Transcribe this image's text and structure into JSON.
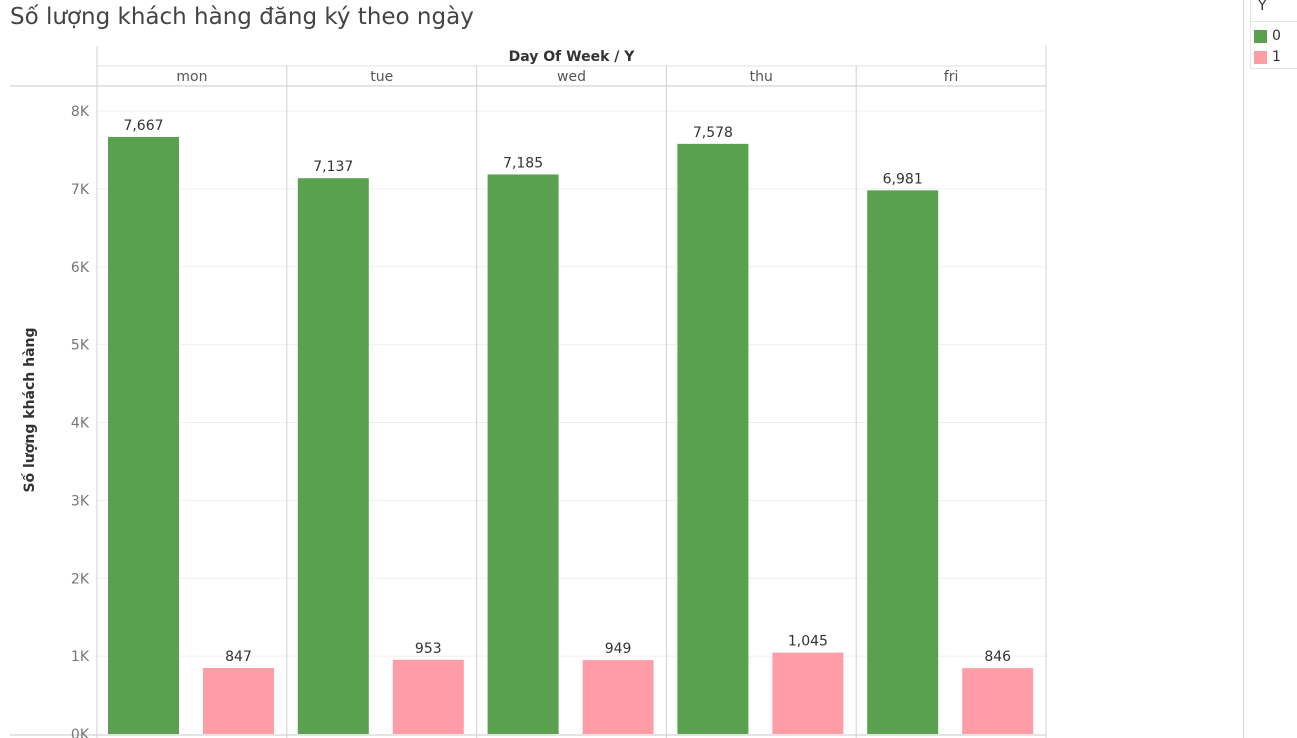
{
  "title": "Số lượng khách hàng đăng ký theo ngày",
  "legend": {
    "title": "Y",
    "items": [
      {
        "label": "0",
        "color": "#59a14f"
      },
      {
        "label": "1",
        "color": "#ff9da7"
      }
    ]
  },
  "chart_data": {
    "type": "bar",
    "title": "Số lượng khách hàng đăng ký theo ngày",
    "header": "Day Of Week  /  Y",
    "ylabel": "Số lượng khách hàng",
    "categories": [
      "mon",
      "tue",
      "wed",
      "thu",
      "fri"
    ],
    "series": [
      {
        "name": "0",
        "color": "#59a14f",
        "values": [
          7667,
          7137,
          7185,
          7578,
          6981
        ]
      },
      {
        "name": "1",
        "color": "#ff9da7",
        "values": [
          847,
          953,
          949,
          1045,
          846
        ]
      }
    ],
    "value_labels": {
      "0": [
        "7,667",
        "7,137",
        "7,185",
        "7,578",
        "6,981"
      ],
      "1": [
        "847",
        "953",
        "949",
        "1,045",
        "846"
      ]
    },
    "yticks": [
      0,
      1000,
      2000,
      3000,
      4000,
      5000,
      6000,
      7000,
      8000
    ],
    "ytick_labels": [
      "0K",
      "1K",
      "2K",
      "3K",
      "4K",
      "5K",
      "6K",
      "7K",
      "8K"
    ],
    "ylim": [
      0,
      8000
    ],
    "grid": true,
    "legend_position": "right"
  }
}
